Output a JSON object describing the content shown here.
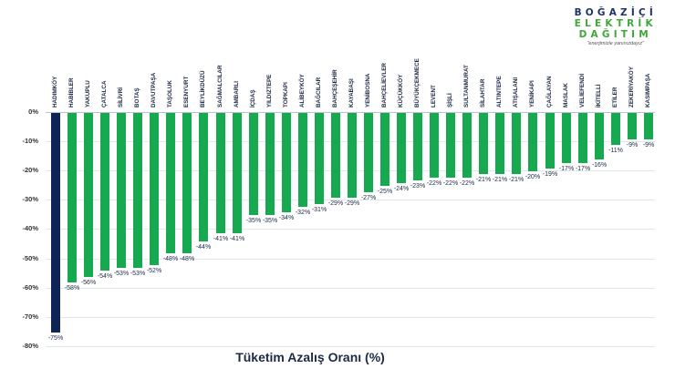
{
  "logo": {
    "line1": "BOĞAZİÇİ",
    "line2": "ELEKTRİK",
    "line3": "DAĞITIM",
    "tagline": "\"enerjimizle yanınızdayız\""
  },
  "colors": {
    "highlight_bar": "#0f2356",
    "bar": "#16a94f",
    "grid": "#e3e6ea",
    "text": "#1c2a45"
  },
  "chart_data": {
    "type": "bar",
    "title": "Tüketim Azalış Oranı (%)",
    "xlabel": "",
    "ylabel": "",
    "ylim": [
      -80,
      0
    ],
    "yticks": [
      "0%",
      "-10%",
      "-20%",
      "-30%",
      "-40%",
      "-50%",
      "-60%",
      "-70%",
      "-80%"
    ],
    "grid": true,
    "legend": null,
    "categories": [
      "HADIMKÖY",
      "HABİBLER",
      "YAKUPLU",
      "ÇATALCA",
      "SİLİVRİ",
      "BOTAŞ",
      "DAVUTPAŞA",
      "TAŞOLUK",
      "ESENYURT",
      "BEYLİKDÜZÜ",
      "SAĞMALCILAR",
      "AMBARLI",
      "İÇDAŞ",
      "YILDIZTEPE",
      "TOPKAPI",
      "ALİBEYKÖY",
      "BAĞCILAR",
      "BAHÇEŞEHİR",
      "KAYABAŞI",
      "YENİBOSNA",
      "BAHÇELİEVLER",
      "KÜÇÜKKÖY",
      "BÜYÜKÇEKMECE",
      "LEVENT",
      "ŞİŞLİ",
      "SULTANMURAT",
      "SİLAHTAR",
      "ALTINTEPE",
      "ATIŞALANI",
      "YENİKAPI",
      "ÇAĞLAYAN",
      "MASLAK",
      "VELİEFENDİ",
      "İKİTELLİ",
      "ETİLER",
      "ZEKERİYAKÖY",
      "KASIMPAŞA"
    ],
    "values": [
      -75,
      -58,
      -56,
      -54,
      -53,
      -53,
      -52,
      -48,
      -48,
      -44,
      -41,
      -41,
      -35,
      -35,
      -34,
      -32,
      -31,
      -29,
      -29,
      -27,
      -25,
      -24,
      -23,
      -22,
      -22,
      -22,
      -21,
      -21,
      -21,
      -20,
      -19,
      -17,
      -17,
      -16,
      -11,
      -9,
      -9
    ],
    "value_labels": [
      "-75%",
      "-58%",
      "-56%",
      "-54%",
      "-53%",
      "-53%",
      "-52%",
      "-48%",
      "-48%",
      "-44%",
      "-41%",
      "-41%",
      "-35%",
      "-35%",
      "-34%",
      "-32%",
      "-31%",
      "-29%",
      "-29%",
      "-27%",
      "-25%",
      "-24%",
      "-23%",
      "-22%",
      "-22%",
      "-22%",
      "-21%",
      "-21%",
      "-21%",
      "-20%",
      "-19%",
      "-17%",
      "-17%",
      "-16%",
      "-11%",
      "-9%",
      "-9%"
    ],
    "highlight_index": 0
  }
}
